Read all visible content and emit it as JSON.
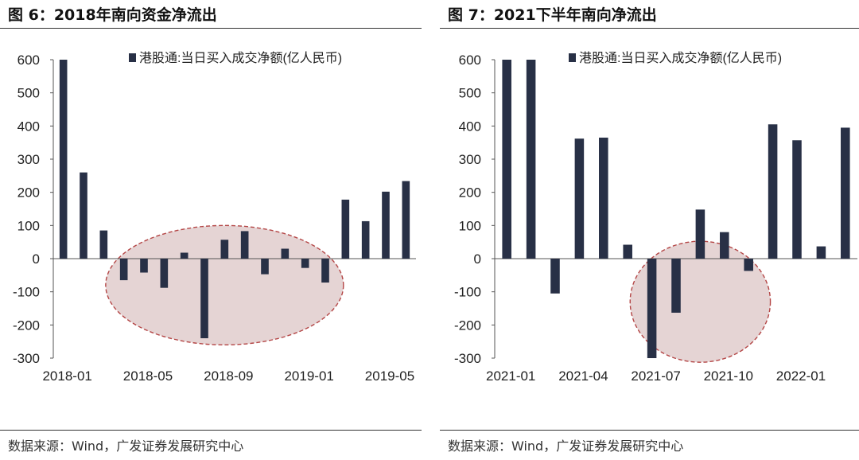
{
  "chart_data": [
    {
      "type": "bar",
      "title": "图 6：2018年南向资金净流出",
      "series": [
        {
          "name": "港股通:当日买入成交净额(亿人民币)",
          "values": [
            600,
            260,
            85,
            -65,
            -42,
            -88,
            18,
            -240,
            57,
            83,
            -47,
            30,
            -28,
            -72,
            178,
            113,
            202,
            234
          ]
        }
      ],
      "categories": [
        "2018-01",
        "2018-02",
        "2018-03",
        "2018-04",
        "2018-05",
        "2018-06",
        "2018-07",
        "2018-08",
        "2018-09",
        "2018-10",
        "2018-11",
        "2018-12",
        "2019-01",
        "2019-02",
        "2019-03",
        "2019-04",
        "2019-05",
        "2019-06"
      ],
      "xtick_labels": [
        "2018-01",
        "2018-05",
        "2018-09",
        "2019-01",
        "2019-05"
      ],
      "xtick_indices": [
        0,
        4,
        8,
        12,
        16
      ],
      "yticks": [
        600,
        500,
        400,
        300,
        200,
        100,
        0,
        -100,
        -200,
        -300
      ],
      "ytick_labels": [
        "600",
        "500",
        "400",
        "300",
        "200",
        "100",
        "0",
        "-100",
        "-200",
        "-300"
      ],
      "ylim": [
        -300,
        600
      ],
      "legend": "top",
      "highlight_ellipse": {
        "from_category": "2018-04",
        "to_category": "2019-02",
        "y_center": -80
      },
      "source": "数据来源：Wind，广发证券发展研究中心"
    },
    {
      "type": "bar",
      "title": "图 7：2021下半年南向净流出",
      "series": [
        {
          "name": "港股通:当日买入成交净额(亿人民币)",
          "values": [
            600,
            600,
            -105,
            362,
            365,
            42,
            -300,
            -163,
            148,
            80,
            -37,
            405,
            357,
            37,
            395
          ]
        }
      ],
      "categories": [
        "2021-01",
        "2021-02",
        "2021-03",
        "2021-04",
        "2021-05",
        "2021-06",
        "2021-07",
        "2021-08",
        "2021-09",
        "2021-10",
        "2021-11",
        "2021-12",
        "2022-01",
        "2022-02",
        "2022-03"
      ],
      "xtick_labels": [
        "2021-01",
        "2021-04",
        "2021-07",
        "2021-10",
        "2022-01"
      ],
      "xtick_indices": [
        0,
        3,
        6,
        9,
        12
      ],
      "yticks": [
        600,
        500,
        400,
        300,
        200,
        100,
        0,
        -100,
        -200,
        -300
      ],
      "ytick_labels": [
        "600",
        "500",
        "400",
        "300",
        "200",
        "100",
        "0",
        "-100",
        "-200",
        "-300"
      ],
      "ylim": [
        -300,
        600
      ],
      "legend": "top",
      "highlight_ellipse": {
        "from_category": "2021-07",
        "to_category": "2021-11",
        "y_center": -130
      },
      "source": "数据来源：Wind，广发证券发展研究中心"
    }
  ],
  "colors": {
    "bar": "#283046",
    "ellipse_fill": "#dcc6c6",
    "ellipse_stroke": "#b44646",
    "axis": "#555555"
  }
}
